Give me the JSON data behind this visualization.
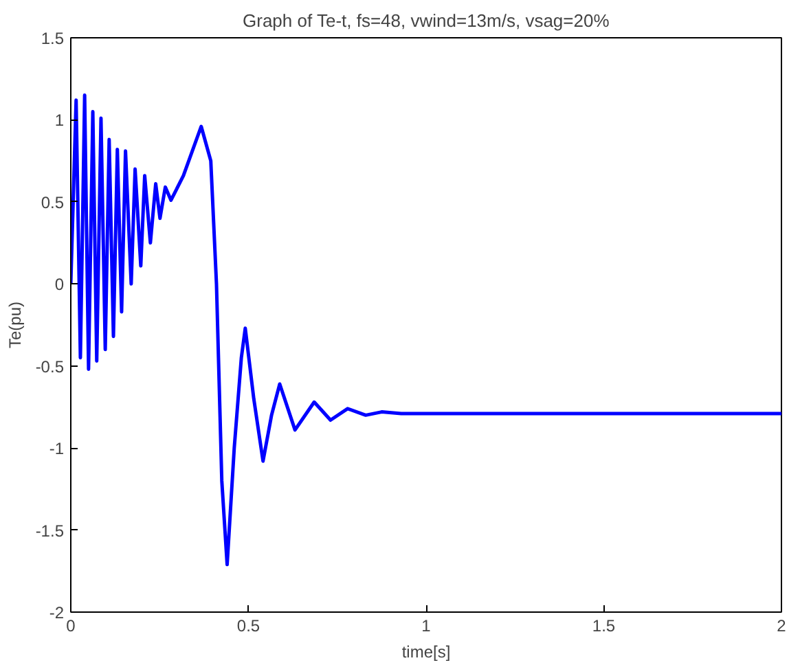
{
  "chart_data": {
    "type": "line",
    "title": "Graph of Te-t, fs=48, vwind=13m/s, vsag=20%",
    "xlabel": "time[s]",
    "ylabel": "Te(pu)",
    "xlim": [
      0,
      2
    ],
    "xticks": [
      0,
      0.5,
      1,
      1.5,
      2
    ],
    "ylim": [
      -2,
      1.5
    ],
    "yticks": [
      -2,
      -1.5,
      -1,
      -0.5,
      0,
      0.5,
      1,
      1.5
    ],
    "grid": false,
    "line_style": "solid",
    "series": [
      {
        "color": "#0000ff",
        "x": [
          0,
          0.015,
          0.027,
          0.039,
          0.05,
          0.062,
          0.073,
          0.085,
          0.097,
          0.108,
          0.12,
          0.131,
          0.143,
          0.154,
          0.17,
          0.181,
          0.197,
          0.208,
          0.224,
          0.239,
          0.251,
          0.266,
          0.282,
          0.317,
          0.367,
          0.394,
          0.41,
          0.425,
          0.44,
          0.46,
          0.48,
          0.491,
          0.515,
          0.541,
          0.565,
          0.588,
          0.631,
          0.685,
          0.731,
          0.779,
          0.83,
          0.875,
          0.93,
          2.0
        ],
        "values": [
          0,
          1.12,
          -0.45,
          1.15,
          -0.52,
          1.05,
          -0.47,
          1.01,
          -0.4,
          0.88,
          -0.32,
          0.82,
          -0.17,
          0.81,
          0.0,
          0.7,
          0.11,
          0.66,
          0.25,
          0.61,
          0.4,
          0.59,
          0.51,
          0.66,
          0.96,
          0.75,
          0,
          -1.2,
          -1.71,
          -1.0,
          -0.45,
          -0.27,
          -0.7,
          -1.08,
          -0.8,
          -0.61,
          -0.89,
          -0.72,
          -0.83,
          -0.76,
          -0.8,
          -0.78,
          -0.79,
          -0.79
        ]
      }
    ]
  }
}
